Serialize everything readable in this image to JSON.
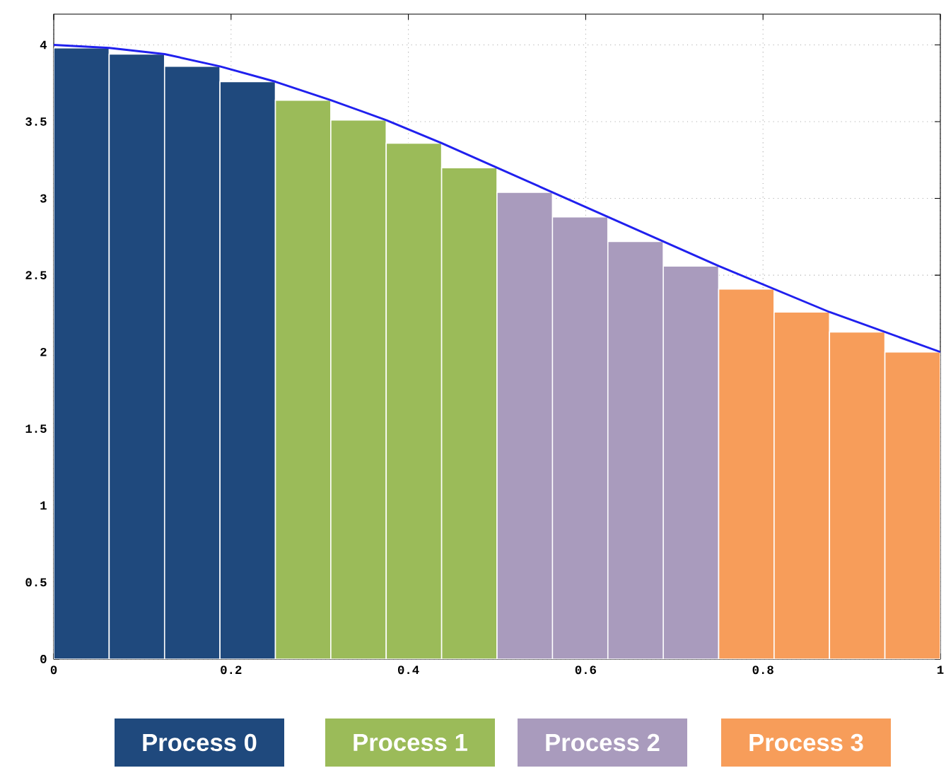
{
  "chart_data": {
    "type": "bar",
    "series": [
      {
        "name": "Process 0",
        "color": "#1f497d",
        "x": [
          0.03125,
          0.09375,
          0.15625,
          0.21875
        ],
        "values": [
          3.98,
          3.94,
          3.86,
          3.76
        ]
      },
      {
        "name": "Process 1",
        "color": "#9bbb59",
        "x": [
          0.28125,
          0.34375,
          0.40625,
          0.46875
        ],
        "values": [
          3.64,
          3.51,
          3.36,
          3.2
        ]
      },
      {
        "name": "Process 2",
        "color": "#a99bbd",
        "x": [
          0.53125,
          0.59375,
          0.65625,
          0.71875
        ],
        "values": [
          3.04,
          2.88,
          2.72,
          2.56
        ]
      },
      {
        "name": "Process 3",
        "color": "#f79d5a",
        "x": [
          0.78125,
          0.84375,
          0.90625,
          0.96875
        ],
        "values": [
          2.41,
          2.26,
          2.13,
          2.0
        ]
      },
      {
        "type": "line",
        "color": "#2020ee",
        "x": [
          0,
          0.0625,
          0.125,
          0.1875,
          0.25,
          0.3125,
          0.375,
          0.4375,
          0.5,
          0.5625,
          0.625,
          0.6875,
          0.75,
          0.8125,
          0.875,
          0.9375,
          1
        ],
        "values": [
          4.0,
          3.98,
          3.94,
          3.86,
          3.76,
          3.64,
          3.51,
          3.36,
          3.2,
          3.04,
          2.88,
          2.72,
          2.56,
          2.41,
          2.26,
          2.13,
          2.0
        ]
      }
    ],
    "xlim": [
      0,
      1
    ],
    "ylim": [
      0,
      4.2
    ],
    "xticks": [
      0,
      0.2,
      0.4,
      0.6,
      0.8,
      1
    ],
    "yticks": [
      0,
      0.5,
      1,
      1.5,
      2,
      2.5,
      3,
      3.5,
      4
    ],
    "grid": true,
    "legend": "bottom"
  }
}
